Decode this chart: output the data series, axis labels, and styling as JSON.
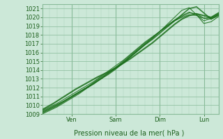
{
  "xlabel": "Pression niveau de la mer( hPa )",
  "bg_color": "#cce8d8",
  "plot_bg_color": "#cce8d8",
  "grid_color_major": "#88bb99",
  "grid_color_minor": "#aad0bb",
  "line_color": "#1a6e1a",
  "ylim": [
    1009,
    1021.5
  ],
  "xlim": [
    0,
    96
  ],
  "yticks": [
    1009,
    1010,
    1011,
    1012,
    1013,
    1014,
    1015,
    1016,
    1017,
    1018,
    1019,
    1020,
    1021
  ],
  "xtick_positions": [
    16,
    40,
    64,
    88
  ],
  "xtick_labels": [
    "Ven",
    "Sam",
    "Dim",
    "Lun"
  ],
  "vline_positions": [
    16,
    40,
    64,
    88
  ],
  "forecast_lines": [
    {
      "x": [
        0,
        4,
        8,
        12,
        16,
        20,
        24,
        28,
        32,
        36,
        40,
        44,
        48,
        52,
        56,
        60,
        64,
        68,
        72,
        76,
        80,
        84,
        88,
        92,
        96
      ],
      "y": [
        1009.2,
        1009.6,
        1010.0,
        1010.5,
        1011.0,
        1011.5,
        1012.0,
        1012.5,
        1013.0,
        1013.6,
        1014.2,
        1014.8,
        1015.5,
        1016.2,
        1016.9,
        1017.5,
        1018.2,
        1018.9,
        1019.6,
        1020.3,
        1021.0,
        1021.2,
        1020.5,
        1019.8,
        1020.3
      ],
      "lw": 1.2
    },
    {
      "x": [
        0,
        4,
        8,
        12,
        16,
        20,
        24,
        28,
        32,
        36,
        40,
        44,
        48,
        52,
        56,
        60,
        64,
        68,
        72,
        76,
        80,
        84,
        88,
        92,
        96
      ],
      "y": [
        1009.0,
        1009.4,
        1009.8,
        1010.3,
        1010.8,
        1011.3,
        1011.9,
        1012.4,
        1013.0,
        1013.5,
        1014.1,
        1014.8,
        1015.5,
        1016.2,
        1016.9,
        1017.6,
        1018.4,
        1019.2,
        1020.0,
        1020.8,
        1021.1,
        1020.3,
        1019.3,
        1019.5,
        1020.1
      ],
      "lw": 0.8
    },
    {
      "x": [
        0,
        4,
        8,
        12,
        16,
        20,
        24,
        28,
        32,
        36,
        40,
        44,
        48,
        52,
        56,
        60,
        64,
        68,
        72,
        76,
        80,
        84,
        88,
        92,
        96
      ],
      "y": [
        1009.3,
        1009.7,
        1010.1,
        1010.5,
        1011.0,
        1011.5,
        1012.0,
        1012.6,
        1013.2,
        1013.7,
        1014.3,
        1015.0,
        1015.7,
        1016.4,
        1017.1,
        1017.7,
        1018.4,
        1019.0,
        1019.6,
        1020.1,
        1020.5,
        1020.4,
        1019.9,
        1019.8,
        1020.2
      ],
      "lw": 0.8
    },
    {
      "x": [
        0,
        4,
        8,
        12,
        16,
        20,
        24,
        28,
        32,
        36,
        40,
        44,
        48,
        52,
        56,
        60,
        64,
        68,
        72,
        76,
        80,
        84,
        88,
        92,
        96
      ],
      "y": [
        1009.4,
        1009.8,
        1010.2,
        1010.7,
        1011.2,
        1011.7,
        1012.2,
        1012.7,
        1013.3,
        1013.9,
        1014.5,
        1015.1,
        1015.8,
        1016.5,
        1017.2,
        1017.8,
        1018.4,
        1019.0,
        1019.6,
        1020.0,
        1020.3,
        1020.2,
        1019.9,
        1020.0,
        1020.4
      ],
      "lw": 0.8
    },
    {
      "x": [
        0,
        4,
        8,
        12,
        16,
        20,
        24,
        28,
        32,
        36,
        40,
        44,
        48,
        52,
        56,
        60,
        64,
        68,
        72,
        76,
        80,
        84,
        88,
        92,
        96
      ],
      "y": [
        1009.1,
        1009.5,
        1009.9,
        1010.4,
        1010.9,
        1011.4,
        1011.9,
        1012.5,
        1013.1,
        1013.7,
        1014.3,
        1014.9,
        1015.6,
        1016.3,
        1017.0,
        1017.7,
        1018.4,
        1019.1,
        1019.7,
        1020.2,
        1020.6,
        1020.3,
        1019.6,
        1019.9,
        1020.3
      ],
      "lw": 0.8
    },
    {
      "x": [
        0,
        6,
        12,
        18,
        24,
        30,
        36,
        42,
        48,
        54,
        60,
        64,
        68,
        72,
        76,
        80,
        84,
        88,
        92,
        96
      ],
      "y": [
        1009.5,
        1010.2,
        1011.0,
        1011.8,
        1012.5,
        1013.2,
        1013.8,
        1014.5,
        1015.3,
        1016.2,
        1017.1,
        1017.8,
        1018.5,
        1019.2,
        1019.8,
        1020.2,
        1020.4,
        1020.2,
        1020.0,
        1020.5
      ],
      "lw": 1.5
    }
  ]
}
